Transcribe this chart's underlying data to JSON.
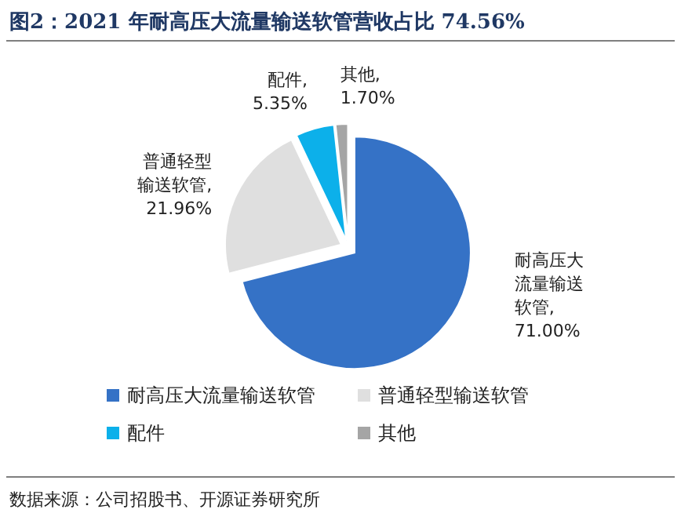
{
  "chart_data": {
    "type": "pie",
    "title": "图2：2021 年耐高压大流量输送软管营收占比 74.56%",
    "categories": [
      "耐高压大流量输送软管",
      "普通轻型输送软管",
      "配件",
      "其他"
    ],
    "values": [
      71.0,
      21.96,
      5.35,
      1.7
    ],
    "value_labels": [
      "耐高压大流量输送软管,\n71.00%",
      "普通轻型输送软管,\n21.96%",
      "配件,\n5.35%",
      "其他,\n1.70%"
    ],
    "colors": [
      "#3572c6",
      "#dfdfdf",
      "#0cb0ea",
      "#a5a5a5"
    ],
    "legend": "bottom",
    "annotations": [
      "数据来源：公司招股书、开源证券研究所"
    ]
  }
}
